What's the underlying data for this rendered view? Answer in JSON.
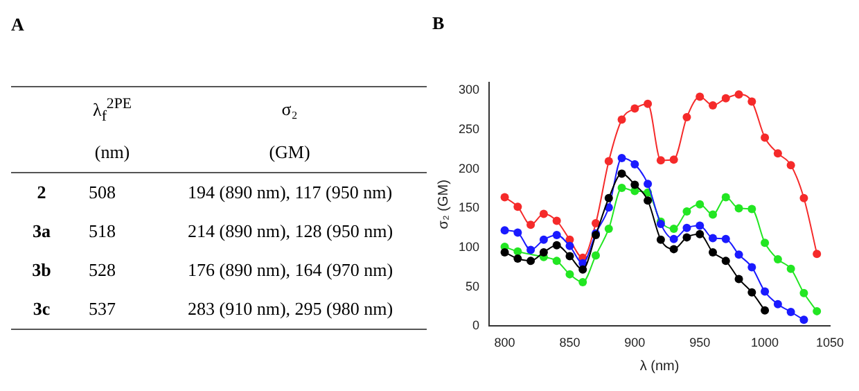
{
  "chart_data": [
    {
      "type": "other",
      "title": "A",
      "categories": [
        "2",
        "3a",
        "3b",
        "3c"
      ],
      "annotations": [
        "λ$_{f}$$^{2PE}$",
        "σ₂",
        "(nm)",
        "(GM)",
        "508",
        "194 (890 nm), 117 (950 nm)",
        "518",
        "214 (890 nm), 128 (950 nm)",
        "528",
        "176 (890 nm), 164 (970 nm)",
        "537",
        "283 (910 nm), 295 (980 nm)"
      ]
    },
    {
      "type": "line",
      "title": "B",
      "xlabel": "λ (nm)",
      "ylabel": "σ₂ (GM)",
      "x": [
        800,
        810,
        820,
        830,
        840,
        850,
        860,
        870,
        880,
        890,
        900,
        910,
        920,
        930,
        940,
        950,
        960,
        970,
        980,
        990,
        1000,
        1010,
        1020,
        1030,
        1040
      ],
      "series": [
        {
          "color": "#f52a2a",
          "values": [
            164,
            152,
            129,
            143,
            134,
            110,
            87,
            131,
            210,
            263,
            277,
            283,
            211,
            212,
            266,
            292,
            281,
            290,
            295,
            286,
            240,
            220,
            205,
            163,
            92
          ]
        },
        {
          "color": "#22e622",
          "values": [
            101,
            95,
            null,
            88,
            83,
            66,
            56,
            90,
            124,
            176,
            172,
            170,
            133,
            124,
            146,
            155,
            142,
            164,
            150,
            149,
            106,
            85,
            73,
            42,
            19
          ]
        },
        {
          "color": "#1a1aff",
          "values": [
            122,
            119,
            97,
            110,
            116,
            102,
            80,
            118,
            151,
            214,
            206,
            181,
            130,
            111,
            125,
            128,
            112,
            111,
            91,
            75,
            44,
            28,
            18,
            8,
            null
          ]
        },
        {
          "color": "#000000",
          "values": [
            94,
            86,
            83,
            94,
            103,
            89,
            72,
            116,
            163,
            194,
            180,
            160,
            110,
            98,
            113,
            117,
            94,
            83,
            60,
            43,
            20,
            null,
            null,
            null,
            null
          ]
        }
      ],
      "xlim": [
        788,
        1050
      ],
      "xticks": [
        800,
        850,
        900,
        950,
        1000,
        1050
      ],
      "ylim": [
        0,
        310
      ],
      "yticks": [
        0,
        50,
        100,
        150,
        200,
        250,
        300
      ],
      "grid": false,
      "legend": false,
      "marker": "circle",
      "line_style": "solid"
    }
  ]
}
